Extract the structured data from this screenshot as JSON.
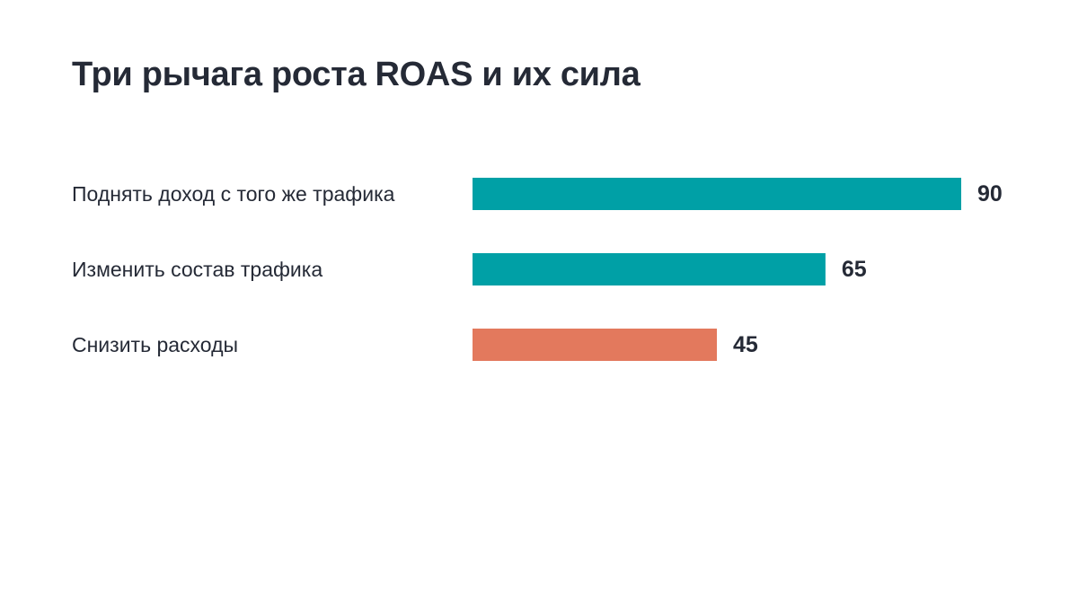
{
  "chart_data": {
    "type": "bar",
    "orientation": "horizontal",
    "title": "Три рычага роста ROAS и их сила",
    "xlabel": "",
    "ylabel": "",
    "xlim": [
      0,
      90
    ],
    "grid": false,
    "categories": [
      "Поднять доход с того же трафика",
      "Изменить состав трафика",
      "Снизить расходы"
    ],
    "values": [
      90,
      65,
      45
    ],
    "colors": [
      "#00a0a6",
      "#00a0a6",
      "#e3795d"
    ]
  }
}
